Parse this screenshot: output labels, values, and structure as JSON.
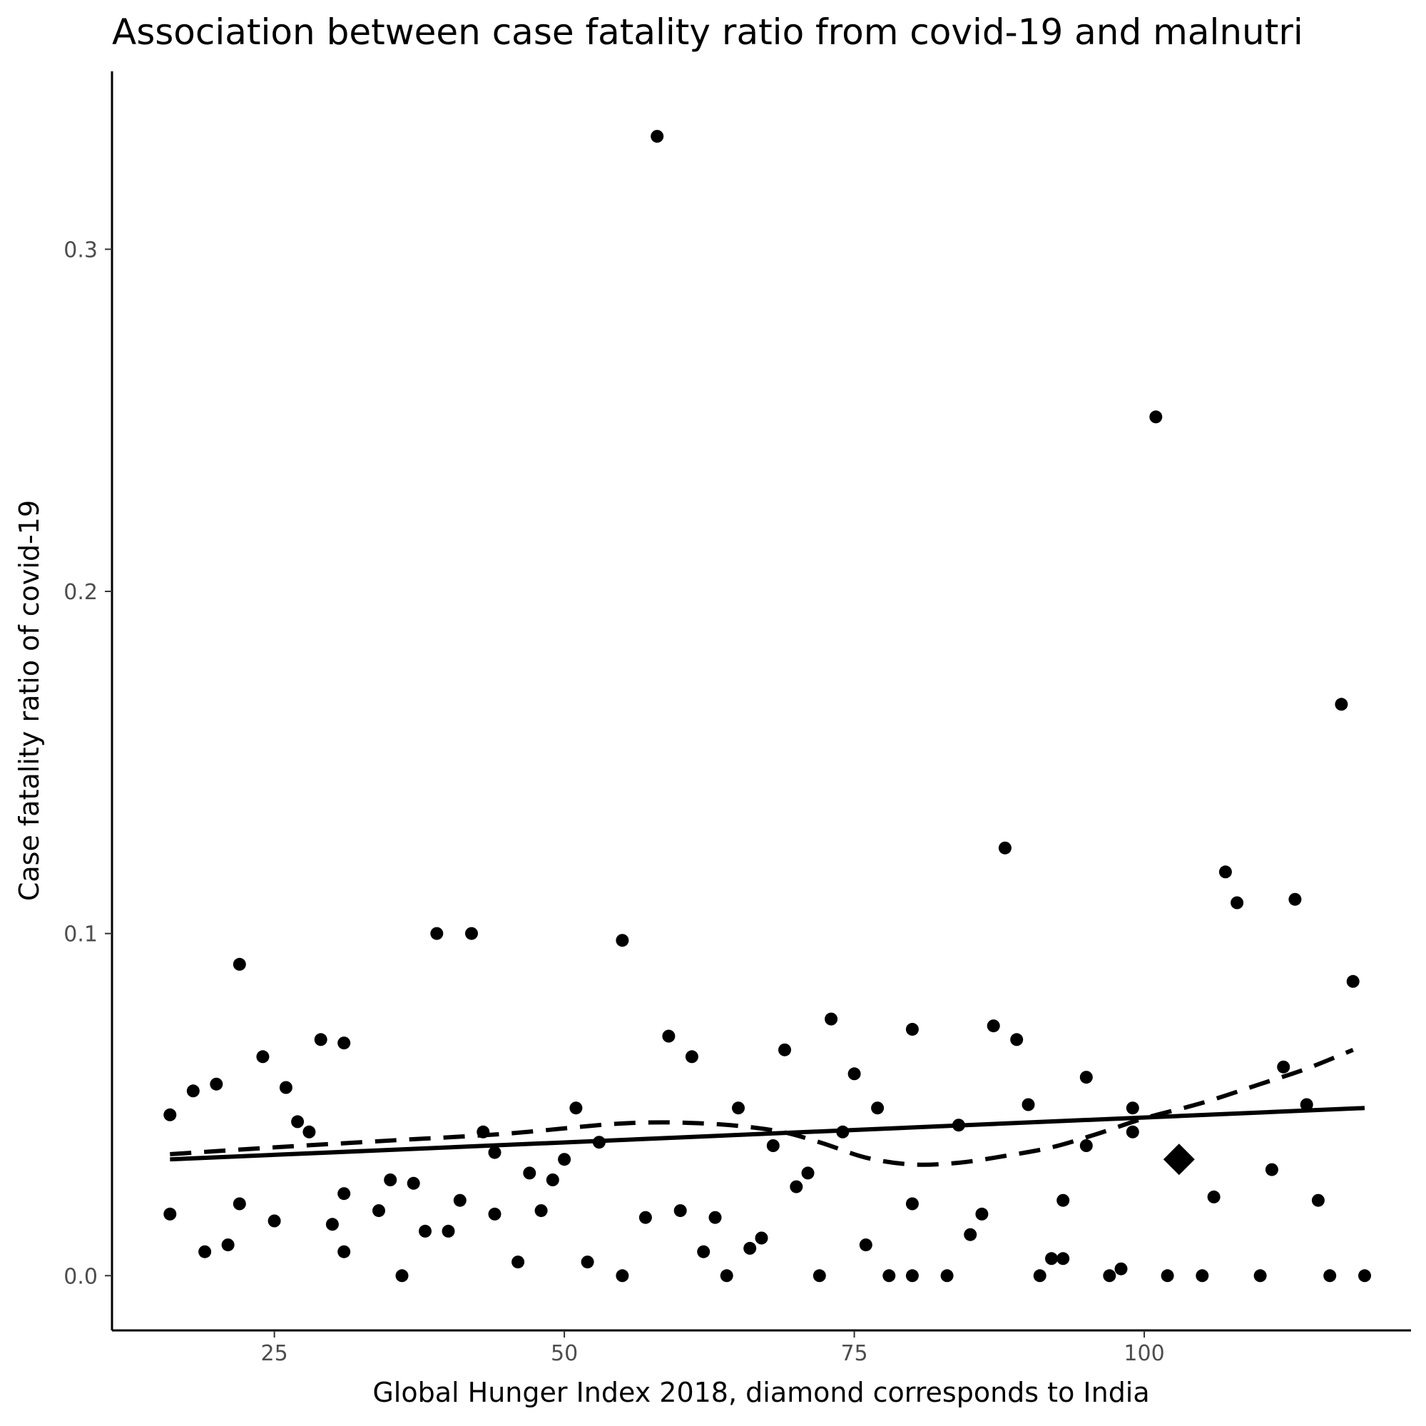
{
  "chart_data": {
    "type": "scatter",
    "title": "Association between case fatality ratio from covid-19 and malnutri",
    "xlabel": "Global Hunger Index 2018, diamond corresponds to India",
    "ylabel": "Case fatality ratio of covid-19",
    "xlim": [
      11,
      123
    ],
    "ylim": [
      -0.016,
      0.352
    ],
    "x_ticks": [
      25,
      50,
      75,
      100
    ],
    "x_tick_labels": [
      "25",
      "50",
      "75",
      "100"
    ],
    "y_ticks": [
      0.0,
      0.1,
      0.2,
      0.3
    ],
    "y_tick_labels": [
      "0.0",
      "0.1",
      "0.2",
      "0.3"
    ],
    "grid": false,
    "colors": {
      "points": "#000000",
      "axis": "#000000",
      "tick_text": "#4d4d4d",
      "background": "#ffffff"
    },
    "points": [
      [
        16,
        0.047
      ],
      [
        16,
        0.018
      ],
      [
        18,
        0.054
      ],
      [
        19,
        0.007
      ],
      [
        20,
        0.056
      ],
      [
        21,
        0.009
      ],
      [
        22,
        0.091
      ],
      [
        22,
        0.021
      ],
      [
        24,
        0.064
      ],
      [
        25,
        0.016
      ],
      [
        26,
        0.055
      ],
      [
        27,
        0.045
      ],
      [
        28,
        0.042
      ],
      [
        29,
        0.069
      ],
      [
        30,
        0.015
      ],
      [
        31,
        0.068
      ],
      [
        31,
        0.024
      ],
      [
        31,
        0.007
      ],
      [
        34,
        0.019
      ],
      [
        35,
        0.028
      ],
      [
        36,
        0.0
      ],
      [
        37,
        0.027
      ],
      [
        38,
        0.013
      ],
      [
        39,
        0.1
      ],
      [
        40,
        0.013
      ],
      [
        41,
        0.022
      ],
      [
        42,
        0.1
      ],
      [
        43,
        0.042
      ],
      [
        44,
        0.036
      ],
      [
        44,
        0.018
      ],
      [
        46,
        0.004
      ],
      [
        47,
        0.03
      ],
      [
        48,
        0.019
      ],
      [
        49,
        0.028
      ],
      [
        50,
        0.034
      ],
      [
        51,
        0.049
      ],
      [
        52,
        0.004
      ],
      [
        53,
        0.039
      ],
      [
        55,
        0.098
      ],
      [
        55,
        0.0
      ],
      [
        57,
        0.017
      ],
      [
        58,
        0.333
      ],
      [
        59,
        0.07
      ],
      [
        60,
        0.019
      ],
      [
        61,
        0.064
      ],
      [
        62,
        0.007
      ],
      [
        63,
        0.017
      ],
      [
        64,
        0.0
      ],
      [
        65,
        0.049
      ],
      [
        66,
        0.008
      ],
      [
        67,
        0.011
      ],
      [
        68,
        0.038
      ],
      [
        69,
        0.066
      ],
      [
        70,
        0.026
      ],
      [
        71,
        0.03
      ],
      [
        72,
        0.0
      ],
      [
        73,
        0.075
      ],
      [
        74,
        0.042
      ],
      [
        75,
        0.059
      ],
      [
        76,
        0.009
      ],
      [
        77,
        0.049
      ],
      [
        78,
        0.0
      ],
      [
        80,
        0.072
      ],
      [
        80,
        0.021
      ],
      [
        80,
        0.0
      ],
      [
        83,
        0.0
      ],
      [
        84,
        0.044
      ],
      [
        85,
        0.012
      ],
      [
        86,
        0.018
      ],
      [
        87,
        0.073
      ],
      [
        88,
        0.125
      ],
      [
        89,
        0.069
      ],
      [
        90,
        0.05
      ],
      [
        91,
        0.0
      ],
      [
        92,
        0.005
      ],
      [
        93,
        0.005
      ],
      [
        93,
        0.022
      ],
      [
        95,
        0.058
      ],
      [
        95,
        0.038
      ],
      [
        97,
        0.0
      ],
      [
        98,
        0.002
      ],
      [
        99,
        0.049
      ],
      [
        99,
        0.042
      ],
      [
        101,
        0.251
      ],
      [
        102,
        0.0
      ],
      [
        105,
        0.0
      ],
      [
        106,
        0.023
      ],
      [
        107,
        0.118
      ],
      [
        108,
        0.109
      ],
      [
        110,
        0.0
      ],
      [
        111,
        0.031
      ],
      [
        112,
        0.061
      ],
      [
        113,
        0.11
      ],
      [
        114,
        0.05
      ],
      [
        115,
        0.022
      ],
      [
        116,
        0.0
      ],
      [
        117,
        0.167
      ],
      [
        118,
        0.086
      ],
      [
        119,
        0.0
      ]
    ],
    "highlight": {
      "label": "India",
      "marker": "diamond",
      "x": 103,
      "y": 0.034
    },
    "linear_fit": {
      "style": "solid",
      "x": [
        16,
        119
      ],
      "y": [
        0.034,
        0.049
      ]
    },
    "smooth_fit": {
      "style": "dashed",
      "x": [
        16,
        25,
        35,
        45,
        55,
        62,
        68,
        72,
        76,
        80,
        84,
        88,
        92,
        96,
        100,
        105,
        110,
        114,
        118
      ],
      "y": [
        0.0355,
        0.0375,
        0.0395,
        0.0415,
        0.0445,
        0.0445,
        0.0425,
        0.039,
        0.0345,
        0.0325,
        0.033,
        0.035,
        0.0375,
        0.0415,
        0.046,
        0.0505,
        0.056,
        0.0605,
        0.066
      ]
    }
  }
}
